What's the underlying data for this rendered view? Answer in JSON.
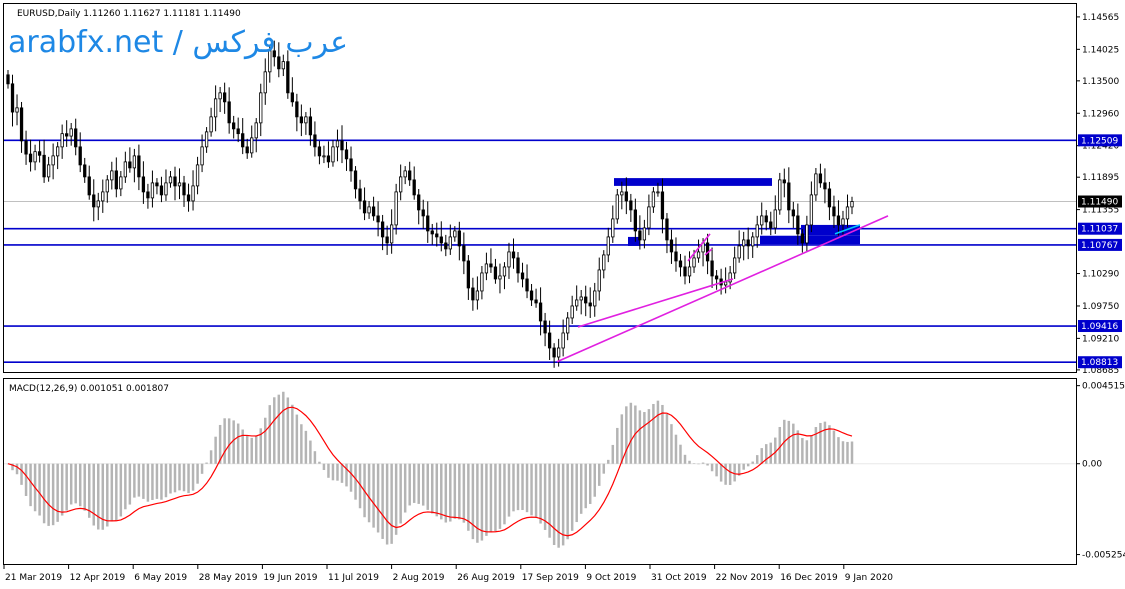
{
  "header": {
    "symbol_line": "EURUSD,Daily  1.11260 1.11627 1.11181 1.11490",
    "watermark": "arabfx.net / عرب فركس"
  },
  "indicator": {
    "label": "MACD(12,26,9) 0.001051 0.001807"
  },
  "colors": {
    "candle": "#000000",
    "hline": "#0000cc",
    "price_badge": "#0000cc",
    "current_badge": "#000000",
    "trendline": "#e020e0",
    "zone": "#0000cc",
    "histogram": "#b4b4b4",
    "signal": "#ff0000",
    "short_trend": "#00c8ff"
  },
  "chart_data": [
    {
      "type": "candlestick",
      "symbol": "EURUSD",
      "timeframe": "Daily",
      "last_ohlc": {
        "open": 1.1126,
        "high": 1.11627,
        "low": 1.11181,
        "close": 1.1149
      },
      "ylim": [
        1.0865,
        1.1478
      ],
      "y_ticks": [
        "1.14565",
        "1.14025",
        "1.13500",
        "1.12960",
        "1.12420",
        "1.11895",
        "1.11355",
        "1.10290",
        "1.09750",
        "1.09210",
        "1.08685"
      ],
      "x_ticks": [
        "21 Mar 2019",
        "12 Apr 2019",
        "6 May 2019",
        "28 May 2019",
        "19 Jun 2019",
        "11 Jul 2019",
        "2 Aug 2019",
        "26 Aug 2019",
        "17 Sep 2019",
        "9 Oct 2019",
        "31 Oct 2019",
        "22 Nov 2019",
        "16 Dec 2019",
        "9 Jan 2020"
      ],
      "horizontal_levels": [
        {
          "value": 1.12509,
          "label": "1.12509"
        },
        {
          "value": 1.11037,
          "label": "1.11037"
        },
        {
          "value": 1.10767,
          "label": "1.10767"
        },
        {
          "value": 1.09416,
          "label": "1.09416"
        },
        {
          "value": 1.08813,
          "label": "1.08813"
        }
      ],
      "current_price": {
        "value": 1.1149,
        "label": "1.11490"
      },
      "closes": [
        1.1345,
        1.1298,
        1.1305,
        1.125,
        1.1228,
        1.1215,
        1.1232,
        1.1226,
        1.119,
        1.121,
        1.1225,
        1.124,
        1.1262,
        1.1258,
        1.127,
        1.124,
        1.121,
        1.119,
        1.116,
        1.114,
        1.115,
        1.1165,
        1.1185,
        1.12,
        1.117,
        1.119,
        1.1215,
        1.1205,
        1.1225,
        1.119,
        1.1165,
        1.1155,
        1.118,
        1.1175,
        1.116,
        1.118,
        1.119,
        1.1175,
        1.118,
        1.116,
        1.115,
        1.1175,
        1.121,
        1.124,
        1.1265,
        1.129,
        1.132,
        1.133,
        1.1315,
        1.128,
        1.127,
        1.1262,
        1.124,
        1.123,
        1.1255,
        1.128,
        1.133,
        1.1365,
        1.14,
        1.139,
        1.137,
        1.1382,
        1.133,
        1.1315,
        1.129,
        1.128,
        1.129,
        1.126,
        1.124,
        1.1225,
        1.1225,
        1.1215,
        1.124,
        1.125,
        1.1235,
        1.122,
        1.12,
        1.117,
        1.115,
        1.113,
        1.114,
        1.1125,
        1.1115,
        1.109,
        1.108,
        1.111,
        1.1165,
        1.119,
        1.12,
        1.1185,
        1.116,
        1.1135,
        1.1125,
        1.11,
        1.1095,
        1.109,
        1.108,
        1.107,
        1.109,
        1.11,
        1.1075,
        1.105,
        1.1005,
        1.0985,
        1.1,
        1.103,
        1.1045,
        1.104,
        1.102,
        1.1025,
        1.104,
        1.1065,
        1.1055,
        1.103,
        1.102,
        1.1,
        1.0985,
        1.098,
        1.095,
        1.093,
        1.0905,
        1.089,
        1.0905,
        1.093,
        1.0955,
        1.0975,
        1.0985,
        1.099,
        1.098,
        1.0975,
        1.1,
        1.1035,
        1.106,
        1.109,
        1.112,
        1.116,
        1.1165,
        1.115,
        1.1135,
        1.11,
        1.1085,
        1.1105,
        1.114,
        1.1165,
        1.1165,
        1.112,
        1.1085,
        1.1065,
        1.105,
        1.104,
        1.1025,
        1.104,
        1.1055,
        1.1065,
        1.108,
        1.105,
        1.1025,
        1.102,
        1.101,
        1.1015,
        1.103,
        1.1055,
        1.1075,
        1.1085,
        1.1075,
        1.109,
        1.111,
        1.1125,
        1.1115,
        1.1105,
        1.1135,
        1.1185,
        1.118,
        1.1135,
        1.1125,
        1.1095,
        1.108,
        1.111,
        1.116,
        1.1195,
        1.118,
        1.117,
        1.114,
        1.1125,
        1.111,
        1.112,
        1.114,
        1.1149
      ]
    },
    {
      "type": "bar+line",
      "name": "MACD(12,26,9)",
      "values": {
        "macd": 0.001051,
        "signal": 0.001807
      },
      "ylim": [
        -0.0058,
        0.0049
      ],
      "y_ticks": [
        "0.004515",
        "0.00",
        "-0.005254"
      ]
    }
  ]
}
